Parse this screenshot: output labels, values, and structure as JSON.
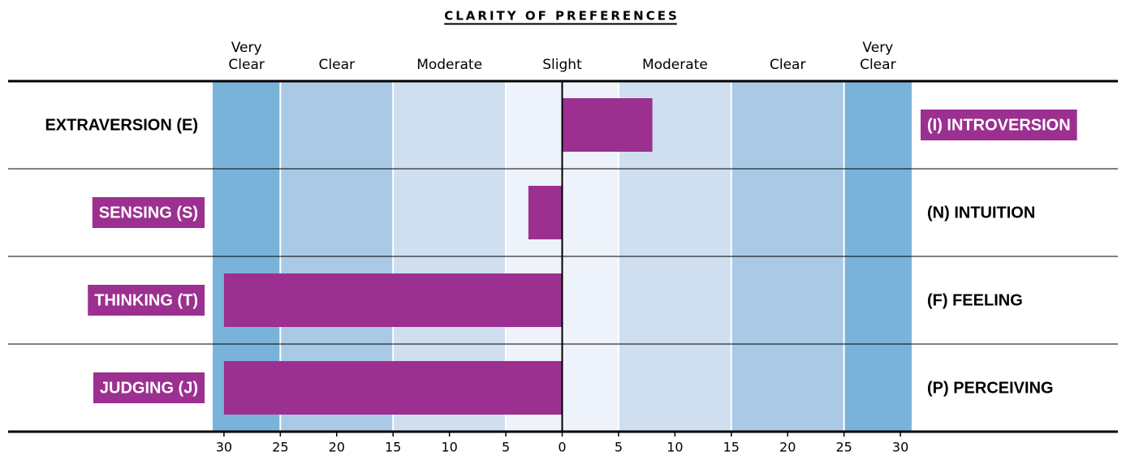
{
  "chart_data": {
    "type": "diverging-bar",
    "title": "CLARITY OF PREFERENCES",
    "left_labels": [
      "EXTRAVERSION (E)",
      "SENSING (S)",
      "THINKING (T)",
      "JUDGING (J)"
    ],
    "right_labels": [
      "(I) INTROVERSION",
      "(N) INTUITION",
      "(F) FEELING",
      "(P) PERCEIVING"
    ],
    "values": [
      8,
      -3,
      -30,
      -30
    ],
    "color": "#9b3090",
    "bands": [
      {
        "label": [
          "Very",
          "Clear"
        ],
        "from": -31,
        "to": -25,
        "color": "#7ab3da"
      },
      {
        "label": [
          "Clear"
        ],
        "from": -25,
        "to": -15,
        "color": "#a9c9e5"
      },
      {
        "label": [
          "Moderate"
        ],
        "from": -15,
        "to": -5,
        "color": "#cfdff0"
      },
      {
        "label": [
          "Slight"
        ],
        "from": -5,
        "to": 5,
        "color": "#eef2fa"
      },
      {
        "label": [
          "Moderate"
        ],
        "from": 5,
        "to": 15,
        "color": "#cfdff0"
      },
      {
        "label": [
          "Clear"
        ],
        "from": 15,
        "to": 25,
        "color": "#a9c9e5"
      },
      {
        "label": [
          "Very",
          "Clear"
        ],
        "from": 25,
        "to": 31,
        "color": "#7ab3da"
      }
    ],
    "xlim": [
      -31,
      31
    ],
    "xticks": [
      {
        "value": -30,
        "label": "30"
      },
      {
        "value": -25,
        "label": "25"
      },
      {
        "value": -20,
        "label": "20"
      },
      {
        "value": -15,
        "label": "15"
      },
      {
        "value": -10,
        "label": "10"
      },
      {
        "value": -5,
        "label": "5"
      },
      0,
      5,
      10,
      15,
      20,
      25,
      30
    ]
  }
}
